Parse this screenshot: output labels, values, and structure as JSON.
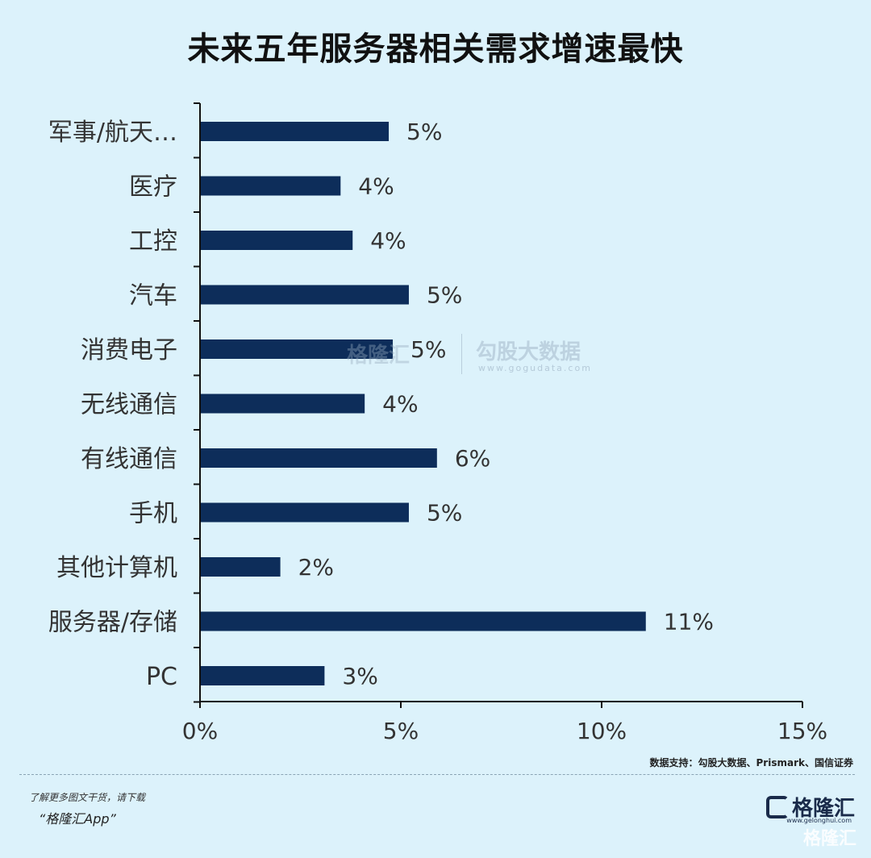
{
  "title": "未来五年服务器相关需求增速最快",
  "chart_data": {
    "type": "bar",
    "orientation": "horizontal",
    "categories": [
      "军事/航天…",
      "医疗",
      "工控",
      "汽车",
      "消费电子",
      "无线通信",
      "有线通信",
      "手机",
      "其他计算机",
      "服务器/存储",
      "PC"
    ],
    "values": [
      4.7,
      3.5,
      3.8,
      5.2,
      4.8,
      4.1,
      5.9,
      5.2,
      2.0,
      11.1,
      3.1
    ],
    "value_labels": [
      "5%",
      "4%",
      "4%",
      "5%",
      "5%",
      "4%",
      "6%",
      "5%",
      "2%",
      "11%",
      "3%"
    ],
    "xlim": [
      0,
      15
    ],
    "xticks": [
      0,
      5,
      10,
      15
    ],
    "xtick_labels": [
      "0%",
      "5%",
      "10%",
      "15%"
    ],
    "bar_color": "#0d2d5a",
    "grid": false
  },
  "source": "数据支持：勾股大数据、Prismark、国信证券",
  "promo_line1": "了解更多图文干货，请下载",
  "promo_line2": "“格隆汇App”",
  "logo_text": "格隆汇",
  "logo_sub": "www.gelonghui.com",
  "watermark_center": "勾股大数据",
  "watermark_center_sub": "www.gogudata.com",
  "watermark_left": "格隆汇",
  "watermark_bottom": "格隆汇"
}
